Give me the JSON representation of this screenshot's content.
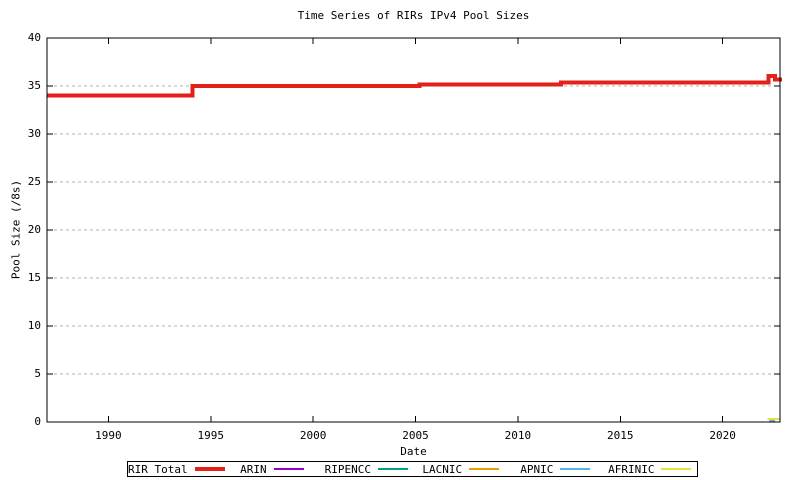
{
  "window": {
    "background": "#ffffff"
  },
  "chart_data": {
    "type": "line",
    "title": "Time Series of RIRs IPv4 Pool Sizes",
    "xlabel": "Date",
    "ylabel": "Pool Size (/8s)",
    "xlim": [
      1987.0,
      2022.8
    ],
    "ylim": [
      0,
      40
    ],
    "xticks": [
      1990,
      1995,
      2000,
      2005,
      2010,
      2015,
      2020
    ],
    "yticks": [
      0,
      5,
      10,
      15,
      20,
      25,
      30,
      35,
      40
    ],
    "grid": "horizontal-dashed-at-yticks",
    "grid_color": "#b3b3b3",
    "axis_color": "#000000",
    "legend_position": "below-plot-boxed",
    "series": [
      {
        "name": "RIR Total",
        "color": "#e32119",
        "line_width": 4,
        "style": "step",
        "points": [
          [
            1987.0,
            34
          ],
          [
            1994.1,
            34
          ],
          [
            1994.1,
            35
          ],
          [
            2005.2,
            35
          ],
          [
            2005.2,
            35.15
          ],
          [
            2012.1,
            35.15
          ],
          [
            2012.1,
            35.35
          ],
          [
            2022.25,
            35.35
          ],
          [
            2022.25,
            36.05
          ],
          [
            2022.55,
            36.05
          ],
          [
            2022.55,
            35.7
          ],
          [
            2022.9,
            35.7
          ]
        ]
      },
      {
        "name": "ARIN",
        "color": "#9400d3",
        "line_width": 2,
        "style": "step",
        "points": [
          [
            2022.28,
            0.05
          ],
          [
            2022.4,
            0.05
          ]
        ]
      },
      {
        "name": "RIPENCC",
        "color": "#00a086",
        "line_width": 2,
        "style": "step",
        "points": []
      },
      {
        "name": "LACNIC",
        "color": "#e69f00",
        "line_width": 2,
        "style": "step",
        "points": []
      },
      {
        "name": "APNIC",
        "color": "#56b4e9",
        "line_width": 2,
        "style": "step",
        "points": [
          [
            2022.3,
            0.12
          ],
          [
            2022.55,
            0.12
          ]
        ]
      },
      {
        "name": "AFRINIC",
        "color": "#e6e13c",
        "line_width": 2,
        "style": "step",
        "points": [
          [
            2022.2,
            0.3
          ],
          [
            2022.8,
            0.3
          ]
        ]
      }
    ]
  }
}
